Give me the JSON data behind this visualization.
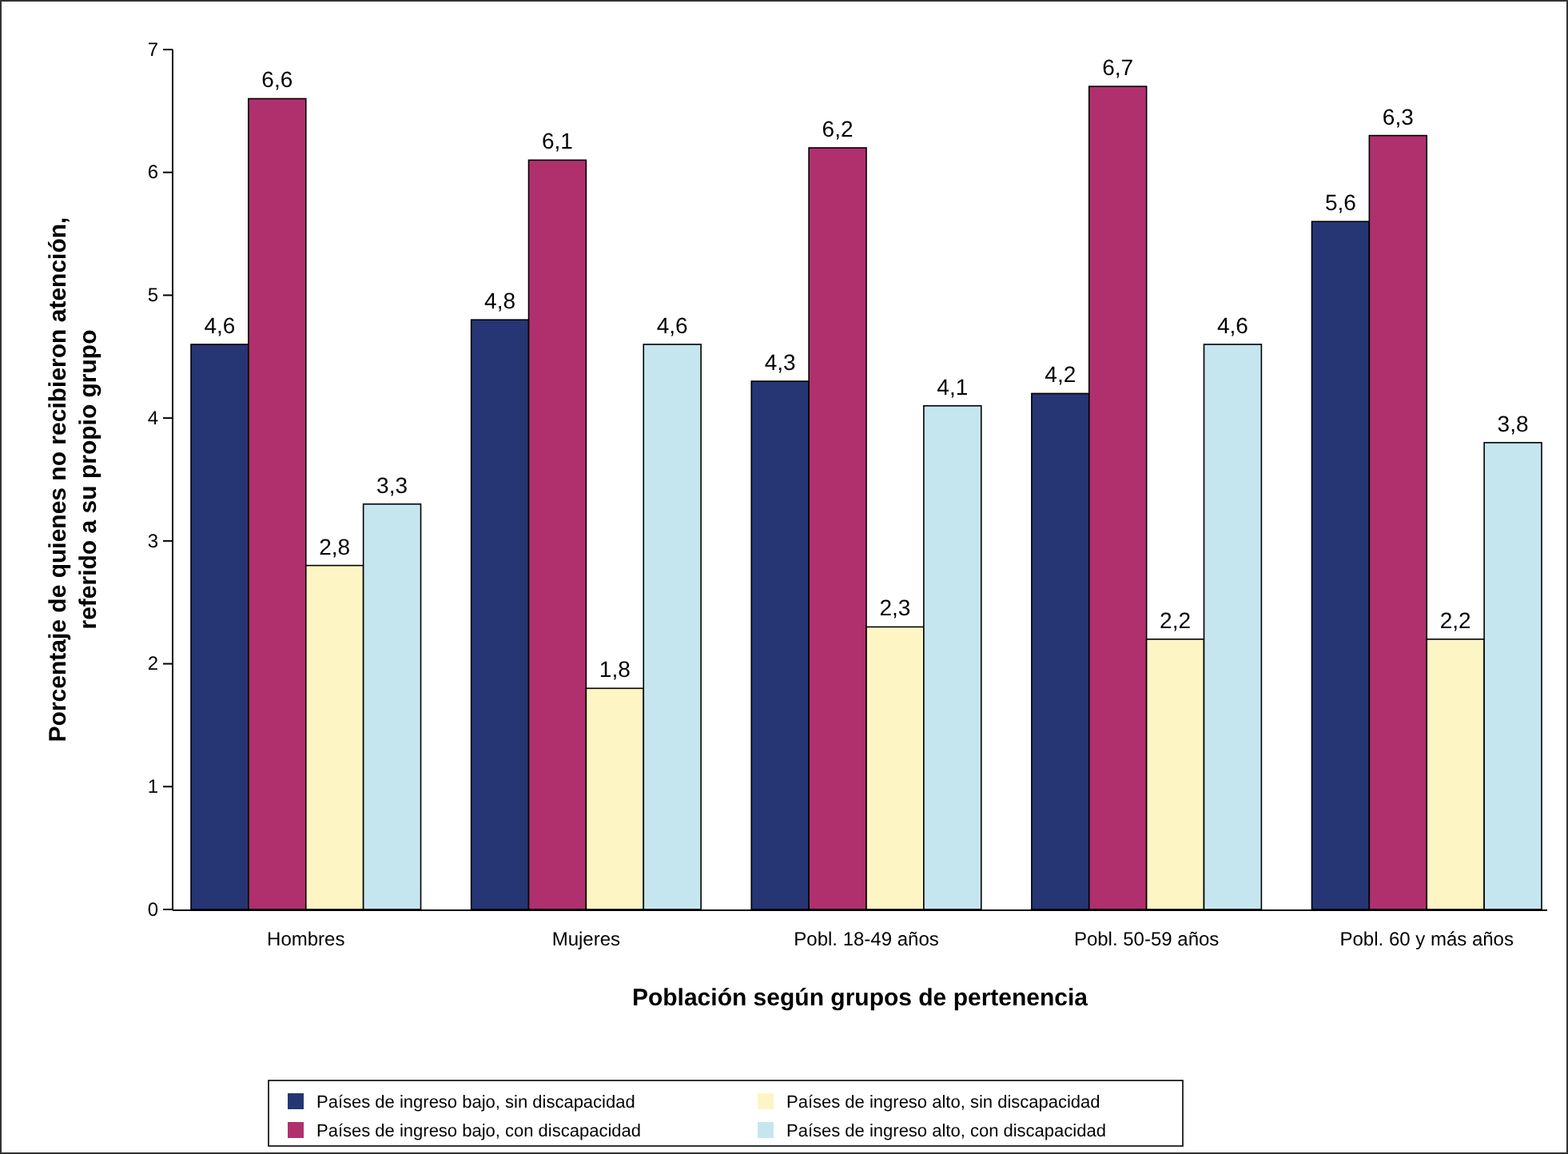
{
  "chart_data": {
    "type": "bar",
    "xlabel": "Población según grupos de pertenencia",
    "ylabel": "Porcentaje de quienes no recibieron atención,\nreferido a su propio grupo",
    "categories": [
      "Hombres",
      "Mujeres",
      "Pobl. 18-49 años",
      "Pobl. 50-59 años",
      "Pobl. 60 y más años"
    ],
    "series": [
      {
        "name": "Países de ingreso bajo, sin discapacidad",
        "color": "#263574",
        "values": [
          4.6,
          4.8,
          4.3,
          4.2,
          5.6
        ],
        "value_labels": [
          "4,6",
          "4,8",
          "4,3",
          "4,2",
          "5,6"
        ]
      },
      {
        "name": "Países de ingreso bajo, con discapacidad",
        "color": "#b0306e",
        "values": [
          6.6,
          6.1,
          6.2,
          6.7,
          6.3
        ],
        "value_labels": [
          "6,6",
          "6,1",
          "6,2",
          "6,7",
          "6,3"
        ]
      },
      {
        "name": "Países de ingreso alto, sin discapacidad",
        "color": "#fdf5c4",
        "values": [
          2.8,
          1.8,
          2.3,
          2.2,
          2.2
        ],
        "value_labels": [
          "2,8",
          "1,8",
          "2,3",
          "2,2",
          "2,2"
        ]
      },
      {
        "name": "Países de ingreso alto, con discapacidad",
        "color": "#c6e6ef",
        "values": [
          3.3,
          4.6,
          4.1,
          4.6,
          3.8
        ],
        "value_labels": [
          "3,3",
          "4,6",
          "4,1",
          "4,6",
          "3,8"
        ]
      }
    ],
    "ylim": [
      0,
      7
    ],
    "yticks": [
      0,
      1,
      2,
      3,
      4,
      5,
      6,
      7
    ],
    "grid": false,
    "legend": "bottom"
  }
}
